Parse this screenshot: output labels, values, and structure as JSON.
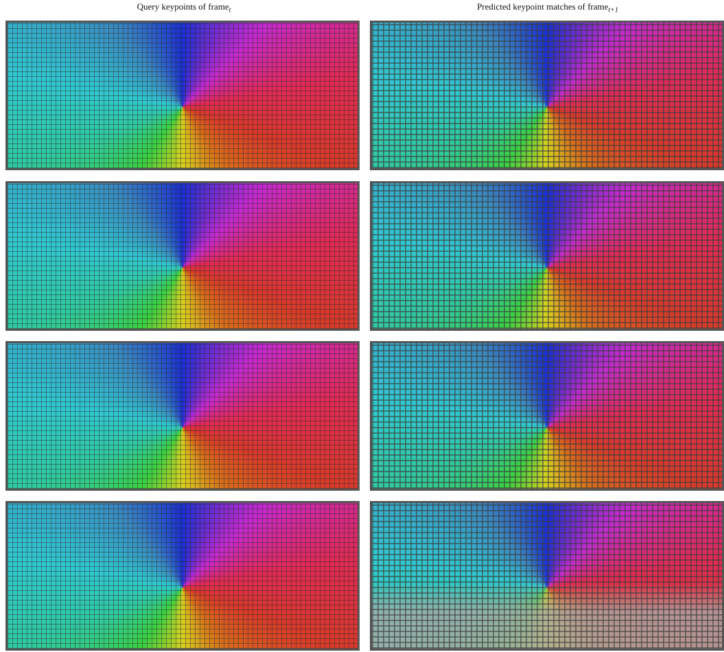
{
  "header": {
    "left_title": {
      "text": "Query keypoints of frame",
      "subscript": "t"
    },
    "right_title": {
      "text": "Predicted keypoint matches of frame",
      "subscript": "t+1"
    }
  }
}
